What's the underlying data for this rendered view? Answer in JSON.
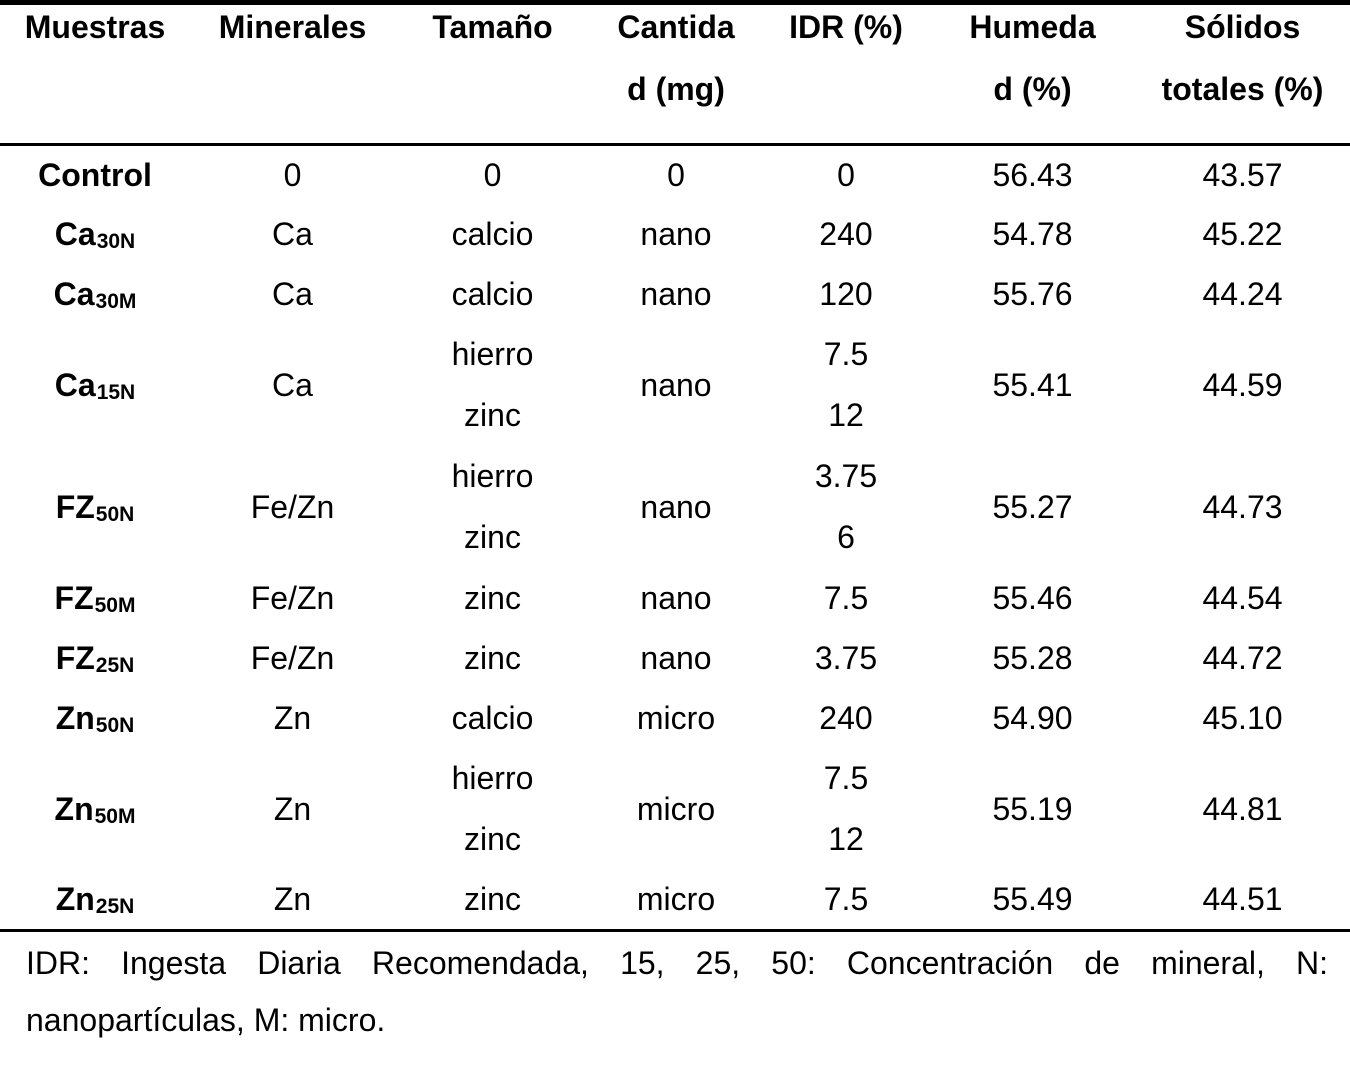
{
  "table": {
    "columns": [
      {
        "id": "muestras",
        "lines": [
          "Muestras"
        ]
      },
      {
        "id": "minerales",
        "lines": [
          "Minerales"
        ]
      },
      {
        "id": "tamano",
        "lines": [
          "Tamaño"
        ]
      },
      {
        "id": "cantidad",
        "lines": [
          "Cantida",
          "d (mg)"
        ]
      },
      {
        "id": "idr",
        "lines": [
          "IDR (%)"
        ]
      },
      {
        "id": "humedad",
        "lines": [
          "Humeda",
          "d (%)"
        ]
      },
      {
        "id": "solidos",
        "lines": [
          "Sólidos",
          "totales (%)"
        ]
      }
    ],
    "rows": [
      {
        "sample": {
          "base": "Control",
          "sub": ""
        },
        "minerales": [
          "0"
        ],
        "tamano": [
          "0"
        ],
        "cantidad": [
          "0"
        ],
        "idr": [
          "0"
        ],
        "humedad": "56.43",
        "solidos": "43.57"
      },
      {
        "sample": {
          "base": "Ca",
          "sub": "30N"
        },
        "minerales": [
          "Ca"
        ],
        "tamano": [
          "calcio"
        ],
        "cantidad": [
          "nano"
        ],
        "idr": [
          "240"
        ],
        "humedad": "54.78",
        "solidos": "45.22"
      },
      {
        "sample": {
          "base": "Ca",
          "sub": "30M"
        },
        "minerales": [
          "Ca"
        ],
        "tamano": [
          "calcio"
        ],
        "cantidad": [
          "nano"
        ],
        "idr": [
          "120"
        ],
        "humedad": "55.76",
        "solidos": "44.24"
      },
      {
        "sample": {
          "base": "Ca",
          "sub": "15N"
        },
        "minerales": [
          "Ca"
        ],
        "tamano": [
          "hierro",
          "zinc"
        ],
        "cantidad": [
          "nano"
        ],
        "idr": [
          "7.5",
          "12"
        ],
        "humedad": "55.41",
        "solidos": "44.59"
      },
      {
        "sample": {
          "base": "FZ",
          "sub": "50N"
        },
        "minerales": [
          "Fe/Zn"
        ],
        "tamano": [
          "hierro",
          "zinc"
        ],
        "cantidad": [
          "nano"
        ],
        "idr": [
          "3.75",
          "6"
        ],
        "humedad": "55.27",
        "solidos": "44.73"
      },
      {
        "sample": {
          "base": "FZ",
          "sub": "50M"
        },
        "minerales": [
          "Fe/Zn"
        ],
        "tamano": [
          "zinc"
        ],
        "cantidad": [
          "nano"
        ],
        "idr": [
          "7.5"
        ],
        "humedad": "55.46",
        "solidos": "44.54"
      },
      {
        "sample": {
          "base": "FZ",
          "sub": "25N"
        },
        "minerales": [
          "Fe/Zn"
        ],
        "tamano": [
          "zinc"
        ],
        "cantidad": [
          "nano"
        ],
        "idr": [
          "3.75"
        ],
        "humedad": "55.28",
        "solidos": "44.72"
      },
      {
        "sample": {
          "base": "Zn",
          "sub": "50N"
        },
        "minerales": [
          "Zn"
        ],
        "tamano": [
          "calcio"
        ],
        "cantidad": [
          "micro"
        ],
        "idr": [
          "240"
        ],
        "humedad": "54.90",
        "solidos": "45.10"
      },
      {
        "sample": {
          "base": "Zn",
          "sub": "50M"
        },
        "minerales": [
          "Zn"
        ],
        "tamano": [
          "hierro",
          "zinc"
        ],
        "cantidad": [
          "micro"
        ],
        "idr": [
          "7.5",
          "12"
        ],
        "humedad": "55.19",
        "solidos": "44.81"
      },
      {
        "sample": {
          "base": "Zn",
          "sub": "25N"
        },
        "minerales": [
          "Zn"
        ],
        "tamano": [
          "zinc"
        ],
        "cantidad": [
          "micro"
        ],
        "idr": [
          "7.5"
        ],
        "humedad": "55.49",
        "solidos": "44.51"
      }
    ]
  },
  "footnote": {
    "line1": "IDR: Ingesta Diaria Recomendada, 15, 25, 50: Concentración de mineral, N:",
    "line2": "nanopartículas, M: micro."
  },
  "colors": {
    "text": "#000000",
    "background": "#ffffff",
    "rule": "#000000"
  }
}
